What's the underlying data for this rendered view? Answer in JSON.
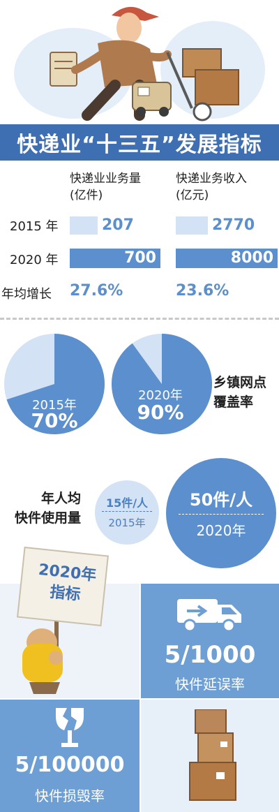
{
  "title": "快递业“十三五”发展指标",
  "table": {
    "col1_head_line1": "快递业业务量",
    "col1_head_line2": "(亿件)",
    "col2_head_line1": "快递业务收入",
    "col2_head_line2": "(亿元)",
    "rows": [
      {
        "label": "2015 年",
        "volume": "207",
        "revenue": "2770"
      },
      {
        "label": "2020 年",
        "volume": "700",
        "revenue": "8000"
      }
    ],
    "growth_label": "年均增长",
    "volume_growth": "27.6%",
    "revenue_growth": "23.6%"
  },
  "coverage": {
    "label_line1": "乡镇网点",
    "label_line2": "覆盖率",
    "pies": [
      {
        "year": "2015年",
        "pct_text": "70%",
        "value": 0.7
      },
      {
        "year": "2020年",
        "pct_text": "90%",
        "value": 0.9
      }
    ]
  },
  "per_person": {
    "label_line1": "年人均",
    "label_line2": "快件使用量",
    "small": {
      "value": "15件/人",
      "year": "2015年"
    },
    "large": {
      "value": "50件/人",
      "year": "2020年"
    }
  },
  "targets": {
    "sign_line1": "2020年",
    "sign_line2": "指标",
    "delay_rate": "5/1000",
    "delay_label": "快件延误率",
    "damage_rate": "5/100000",
    "damage_label": "快件损毁率"
  },
  "colors": {
    "title_bg": "#3f6fb3",
    "accent": "#5b8fcd",
    "light": "#d3e2f4",
    "tile": "#6d9fd5"
  },
  "icons": [
    "courier-illustration",
    "truck-icon",
    "broken-glass-icon",
    "boxes-icon",
    "sign-holder-illustration"
  ]
}
